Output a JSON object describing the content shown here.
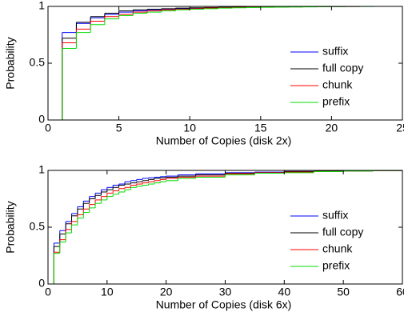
{
  "chart_data": [
    {
      "type": "step",
      "xlabel": "Number of Copies (disk 2x)",
      "ylabel": "Probability",
      "xlim": [
        0,
        25
      ],
      "xticks": [
        0,
        5,
        10,
        15,
        20,
        25
      ],
      "ylim": [
        0,
        1
      ],
      "yticks": [
        0,
        0.5,
        1
      ],
      "legend": "right",
      "x": [
        1,
        2,
        3,
        4,
        5,
        6,
        7,
        8,
        9,
        10,
        11,
        12,
        13,
        14,
        15,
        16,
        17,
        18,
        19,
        20,
        21,
        22,
        23,
        24,
        25
      ],
      "series": [
        {
          "name": "suffix",
          "color": "#0000ff",
          "values": [
            0.77,
            0.85,
            0.9,
            0.93,
            0.95,
            0.96,
            0.97,
            0.975,
            0.98,
            0.985,
            0.988,
            0.99,
            0.992,
            0.994,
            0.995,
            0.996,
            0.997,
            0.998,
            0.998,
            0.999,
            0.999,
            1,
            1,
            1,
            1
          ]
        },
        {
          "name": "full copy",
          "color": "#000000",
          "values": [
            0.72,
            0.86,
            0.91,
            0.94,
            0.96,
            0.97,
            0.975,
            0.98,
            0.985,
            0.988,
            0.99,
            0.992,
            0.994,
            0.995,
            0.996,
            0.997,
            0.998,
            0.998,
            0.999,
            0.999,
            1,
            1,
            1,
            1,
            1
          ]
        },
        {
          "name": "chunk",
          "color": "#ff0000",
          "values": [
            0.68,
            0.8,
            0.87,
            0.91,
            0.93,
            0.95,
            0.96,
            0.97,
            0.975,
            0.98,
            0.985,
            0.988,
            0.99,
            0.992,
            0.994,
            0.995,
            0.996,
            0.997,
            0.998,
            0.999,
            0.999,
            1,
            1,
            1,
            1
          ]
        },
        {
          "name": "prefix",
          "color": "#00dd00",
          "values": [
            0.63,
            0.77,
            0.84,
            0.89,
            0.92,
            0.94,
            0.95,
            0.96,
            0.97,
            0.975,
            0.98,
            0.985,
            0.988,
            0.99,
            0.992,
            0.994,
            0.995,
            0.996,
            0.997,
            0.998,
            0.999,
            0.999,
            1,
            1,
            1
          ]
        }
      ]
    },
    {
      "type": "step",
      "xlabel": "Number of Copies (disk 6x)",
      "ylabel": "Probability",
      "xlim": [
        0,
        60
      ],
      "xticks": [
        0,
        10,
        20,
        30,
        40,
        50,
        60
      ],
      "ylim": [
        0,
        1
      ],
      "yticks": [
        0,
        0.5,
        1
      ],
      "legend": "right",
      "x": [
        1,
        2,
        3,
        4,
        5,
        6,
        7,
        8,
        9,
        10,
        11,
        12,
        13,
        14,
        15,
        16,
        17,
        18,
        19,
        20,
        22,
        25,
        30,
        35,
        40,
        45,
        50,
        55,
        60
      ],
      "series": [
        {
          "name": "suffix",
          "color": "#0000ff",
          "values": [
            0.36,
            0.47,
            0.55,
            0.62,
            0.68,
            0.73,
            0.77,
            0.8,
            0.83,
            0.85,
            0.87,
            0.88,
            0.9,
            0.91,
            0.92,
            0.93,
            0.935,
            0.94,
            0.945,
            0.95,
            0.96,
            0.97,
            0.98,
            0.985,
            0.99,
            0.993,
            0.996,
            0.998,
            1
          ]
        },
        {
          "name": "full copy",
          "color": "#000000",
          "values": [
            0.33,
            0.44,
            0.53,
            0.6,
            0.66,
            0.71,
            0.75,
            0.78,
            0.81,
            0.83,
            0.85,
            0.87,
            0.88,
            0.89,
            0.9,
            0.91,
            0.92,
            0.93,
            0.935,
            0.94,
            0.95,
            0.96,
            0.975,
            0.98,
            0.99,
            0.993,
            0.996,
            0.998,
            1
          ]
        },
        {
          "name": "chunk",
          "color": "#ff0000",
          "values": [
            0.28,
            0.39,
            0.48,
            0.55,
            0.61,
            0.66,
            0.7,
            0.74,
            0.77,
            0.8,
            0.82,
            0.84,
            0.85,
            0.87,
            0.88,
            0.89,
            0.9,
            0.91,
            0.92,
            0.93,
            0.94,
            0.95,
            0.97,
            0.98,
            0.985,
            0.99,
            0.995,
            0.998,
            1
          ]
        },
        {
          "name": "prefix",
          "color": "#00dd00",
          "values": [
            0.27,
            0.37,
            0.45,
            0.52,
            0.58,
            0.63,
            0.67,
            0.71,
            0.74,
            0.77,
            0.79,
            0.81,
            0.83,
            0.85,
            0.86,
            0.87,
            0.88,
            0.89,
            0.9,
            0.91,
            0.93,
            0.94,
            0.96,
            0.975,
            0.98,
            0.99,
            0.995,
            0.998,
            1
          ]
        }
      ]
    }
  ]
}
